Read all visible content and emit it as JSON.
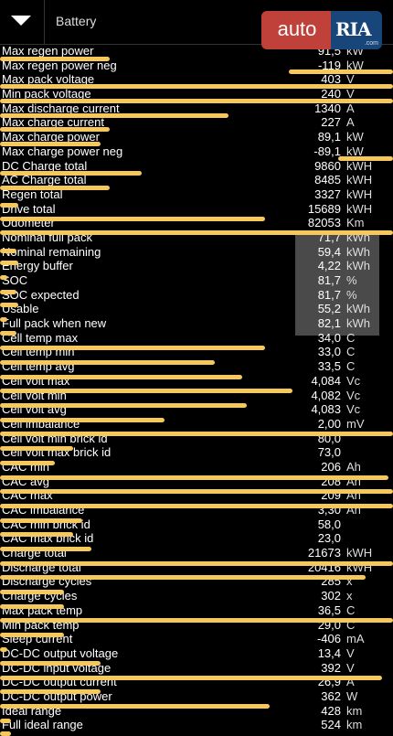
{
  "header": {
    "title": "Battery",
    "dropdown_icon": "chevron-down-icon"
  },
  "watermark": {
    "left_text": "auto",
    "right_text": "RIA",
    "sub_text": ".com",
    "colors": {
      "auto_bg": "#c0403a",
      "ria_bg": "#19467a"
    }
  },
  "colors": {
    "highlight": "#f6c75a",
    "background": "#000000",
    "grouped_values_bg": "#4a4a4a"
  },
  "rows": [
    {
      "label": "Max regen power",
      "value": "91,5",
      "unit": "kW"
    },
    {
      "label": "Max regen power neg",
      "value": "-119",
      "unit": "kW"
    },
    {
      "label": "Max pack voltage",
      "value": "403",
      "unit": "V"
    },
    {
      "label": "Min pack voltage",
      "value": "240",
      "unit": "V"
    },
    {
      "label": "Max discharge current",
      "value": "1340",
      "unit": "A"
    },
    {
      "label": "Max charge current",
      "value": "227",
      "unit": "A"
    },
    {
      "label": "Max charge power",
      "value": "89,1",
      "unit": "kW"
    },
    {
      "label": "Max charge power neg",
      "value": "-89,1",
      "unit": "kW"
    },
    {
      "label": "DC Charge total",
      "value": "9860",
      "unit": "kWH"
    },
    {
      "label": "AC Charge total",
      "value": "8485",
      "unit": "kWH"
    },
    {
      "label": "Regen total",
      "value": "3327",
      "unit": "kWH"
    },
    {
      "label": "Drive total",
      "value": "15689",
      "unit": "kWH"
    },
    {
      "label": "Odometer",
      "value": "82053",
      "unit": "Km"
    },
    {
      "label": "Nominal full pack",
      "value": "71,7",
      "unit": "kWh"
    },
    {
      "label": "Nominal remaining",
      "value": "59,4",
      "unit": "kWh"
    },
    {
      "label": "Energy buffer",
      "value": "4,22",
      "unit": "kWh"
    },
    {
      "label": "SOC",
      "value": "81,7",
      "unit": "%"
    },
    {
      "label": "SOC expected",
      "value": "81,7",
      "unit": "%"
    },
    {
      "label": "Usable",
      "value": "55,2",
      "unit": "kWh"
    },
    {
      "label": "Full pack when new",
      "value": "82,1",
      "unit": "kWh"
    },
    {
      "label": "Cell temp max",
      "value": "34,0",
      "unit": "C"
    },
    {
      "label": "Cell temp min",
      "value": "33,0",
      "unit": "C"
    },
    {
      "label": "Cell temp avg",
      "value": "33,5",
      "unit": "C"
    },
    {
      "label": "Cell volt max",
      "value": "4,084",
      "unit": "Vc"
    },
    {
      "label": "Cell volt min",
      "value": "4,082",
      "unit": "Vc"
    },
    {
      "label": "Cell volt avg",
      "value": "4,083",
      "unit": "Vc"
    },
    {
      "label": "Cell imbalance",
      "value": "2,00",
      "unit": "mV"
    },
    {
      "label": "Cell volt min brick id",
      "value": "80,0",
      "unit": ""
    },
    {
      "label": "Cell volt max brick id",
      "value": "73,0",
      "unit": ""
    },
    {
      "label": "CAC min",
      "value": "206",
      "unit": "Ah"
    },
    {
      "label": "CAC avg",
      "value": "208",
      "unit": "Ah"
    },
    {
      "label": "CAC max",
      "value": "209",
      "unit": "Ah"
    },
    {
      "label": "CAC imbalance",
      "value": "3,30",
      "unit": "Ah"
    },
    {
      "label": "CAC min brick id",
      "value": "58,0",
      "unit": ""
    },
    {
      "label": "CAC max brick id",
      "value": "23,0",
      "unit": ""
    },
    {
      "label": "Charge total",
      "value": "21673",
      "unit": "kWH"
    },
    {
      "label": "Discharge total",
      "value": "20416",
      "unit": "kWH"
    },
    {
      "label": "Discharge cycles",
      "value": "285",
      "unit": "x"
    },
    {
      "label": "Charge cycles",
      "value": "302",
      "unit": "x"
    },
    {
      "label": "Max pack temp",
      "value": "36,5",
      "unit": "C"
    },
    {
      "label": "Min pack temp",
      "value": "29,0",
      "unit": "C"
    },
    {
      "label": "Sleep current",
      "value": "-406",
      "unit": "mA"
    },
    {
      "label": "DC-DC output voltage",
      "value": "13,4",
      "unit": "V"
    },
    {
      "label": "DC-DC input voltage",
      "value": "392",
      "unit": "V"
    },
    {
      "label": "DC-DC output current",
      "value": "26,9",
      "unit": "A"
    },
    {
      "label": "DC-DC output power",
      "value": "362",
      "unit": "W"
    },
    {
      "label": "Ideal range",
      "value": "428",
      "unit": "km"
    },
    {
      "label": "Full ideal range",
      "value": "524",
      "unit": "km"
    }
  ]
}
